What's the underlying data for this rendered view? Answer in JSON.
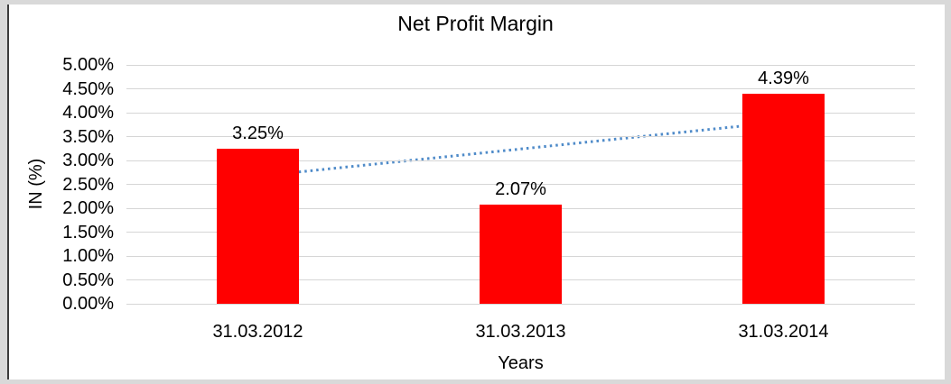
{
  "chart_data": {
    "type": "bar",
    "title": "Net Profit Margin",
    "xlabel": "Years",
    "ylabel": "IN (%)",
    "categories": [
      "31.03.2012",
      "31.03.2013",
      "31.03.2014"
    ],
    "values": [
      3.25,
      2.07,
      4.39
    ],
    "data_labels": [
      "3.25%",
      "2.07%",
      "4.39%"
    ],
    "ylim": [
      0,
      5
    ],
    "yticks": [
      0,
      0.5,
      1,
      1.5,
      2,
      2.5,
      3,
      3.5,
      4,
      4.5,
      5
    ],
    "ytick_labels": [
      "0.00%",
      "0.50%",
      "1.00%",
      "1.50%",
      "2.00%",
      "2.50%",
      "3.00%",
      "3.50%",
      "4.00%",
      "4.50%",
      "5.00%"
    ],
    "grid": "horizontal",
    "legend": "none",
    "bar_color": "#ff0000",
    "gridline_color": "#d6d6d6",
    "trendline": {
      "type": "linear",
      "style": "dotted",
      "color": "#4f8bc9",
      "start_value": 2.67,
      "end_value": 3.81
    }
  }
}
